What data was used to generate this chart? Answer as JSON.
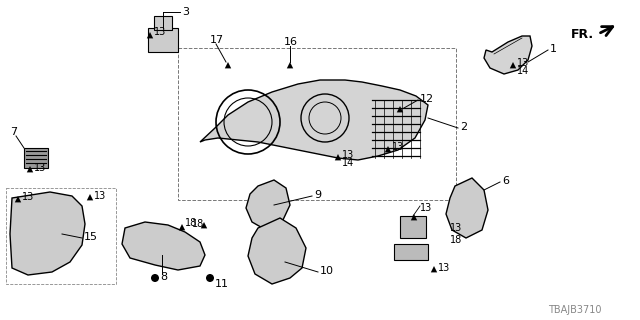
{
  "bg_color": "#ffffff",
  "diagram_code": "TBAJB3710",
  "fr_label": "FR.",
  "line_color": "#000000",
  "part_color": "#555555",
  "gray_fill": "#cccccc",
  "dark_fill": "#aaaaaa"
}
